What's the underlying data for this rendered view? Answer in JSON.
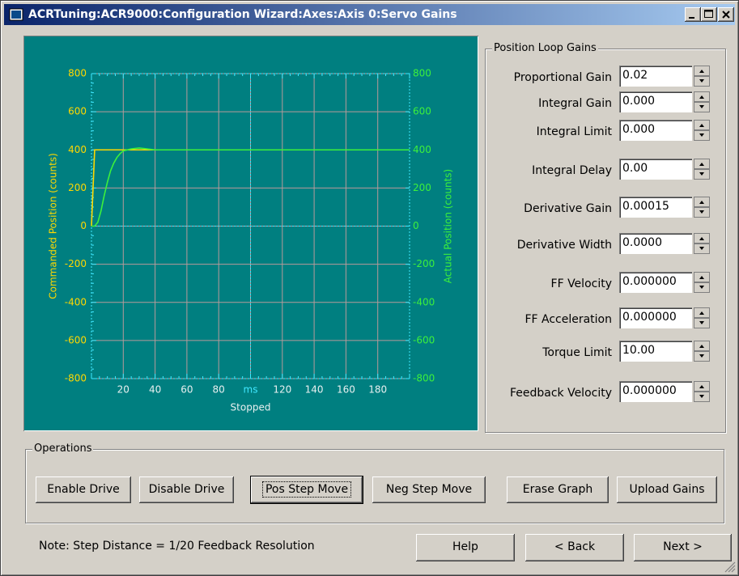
{
  "window": {
    "title": "ACRTuning:ACR9000:Configuration Wizard:Axes:Axis 0:Servo Gains"
  },
  "chart_data": {
    "type": "line",
    "ylabel": "Commanded Position (counts)",
    "y2label": "Actual Position (counts)",
    "xlabel": "Stopped",
    "xlim": [
      0,
      200
    ],
    "xticks": [
      20,
      40,
      60,
      80,
      {
        "value": 100,
        "label": "ms"
      },
      120,
      140,
      160,
      180
    ],
    "ylim": [
      -800,
      800
    ],
    "yticks": [
      -800,
      -600,
      -400,
      -200,
      0,
      200,
      400,
      600,
      800
    ],
    "y2lim": [
      -800,
      800
    ],
    "y2ticks": [
      -800,
      -600,
      -400,
      -200,
      0,
      200,
      400,
      600,
      800
    ],
    "grid": true,
    "x": [
      0,
      2,
      4,
      6,
      8,
      10,
      12,
      14,
      16,
      18,
      20,
      25,
      30,
      35,
      40,
      200
    ],
    "series": [
      {
        "name": "Commanded Position",
        "color": "#ffd800",
        "values": [
          0,
          400,
          400,
          400,
          400,
          400,
          400,
          400,
          400,
          400,
          400,
          400,
          400,
          400,
          400,
          400
        ]
      },
      {
        "name": "Actual Position",
        "color": "#3cf03c",
        "axis": "y2",
        "values": [
          0,
          0,
          20,
          80,
          160,
          230,
          290,
          330,
          360,
          380,
          395,
          405,
          410,
          405,
          400,
          400
        ]
      }
    ]
  },
  "gains": {
    "title": "Position Loop Gains",
    "fields": [
      {
        "label": "Proportional Gain",
        "value": "0.02"
      },
      {
        "label": "Integral Gain",
        "value": "0.000"
      },
      {
        "label": "Integral Limit",
        "value": "0.000"
      },
      {
        "label": "Integral Delay",
        "value": "0.00"
      },
      {
        "label": "Derivative Gain",
        "value": "0.00015"
      },
      {
        "label": "Derivative Width",
        "value": "0.0000"
      },
      {
        "label": "FF Velocity",
        "value": "0.000000"
      },
      {
        "label": "FF Acceleration",
        "value": "0.000000"
      },
      {
        "label": "Torque Limit",
        "value": "10.00"
      },
      {
        "label": "Feedback Velocity",
        "value": "0.000000"
      }
    ]
  },
  "operations": {
    "title": "Operations",
    "buttons": [
      "Enable Drive",
      "Disable Drive",
      "Pos Step Move",
      "Neg Step Move",
      "Erase Graph",
      "Upload Gains"
    ]
  },
  "note": "Note:  Step Distance = 1/20 Feedback Resolution",
  "nav": [
    "Help",
    "< Back",
    "Next >"
  ]
}
